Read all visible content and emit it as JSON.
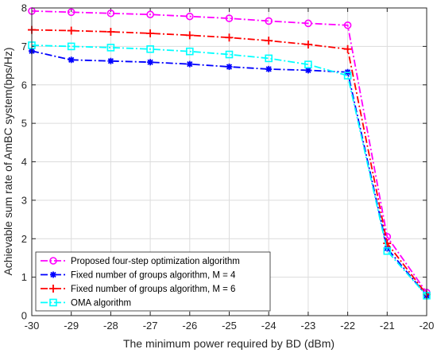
{
  "chart_data": {
    "type": "line",
    "title": "",
    "xlabel": "The minimum power required by BD (dBm)",
    "ylabel": "Achievable sum rate of AmBC system(bps/Hz)",
    "xlim": [
      -30,
      -20
    ],
    "ylim": [
      0,
      8
    ],
    "xticks": [
      -30,
      -29,
      -28,
      -27,
      -26,
      -25,
      -24,
      -23,
      -22,
      -21,
      -20
    ],
    "yticks": [
      0,
      1,
      2,
      3,
      4,
      5,
      6,
      7,
      8
    ],
    "grid": true,
    "legend_position": "bottom-left",
    "x": [
      -30,
      -29,
      -28,
      -27,
      -26,
      -25,
      -24,
      -23,
      -22,
      -21,
      -20
    ],
    "series": [
      {
        "name": "Proposed four-step optimization algorithm",
        "color": "#ff00ff",
        "marker": "circle",
        "values": [
          7.92,
          7.89,
          7.86,
          7.83,
          7.78,
          7.73,
          7.66,
          7.6,
          7.55,
          2.05,
          0.6
        ]
      },
      {
        "name": "Fixed number of groups algorithm, M = 4",
        "color": "#0000ff",
        "marker": "asterisk",
        "values": [
          6.88,
          6.65,
          6.62,
          6.59,
          6.54,
          6.47,
          6.41,
          6.38,
          6.33,
          1.75,
          0.52
        ]
      },
      {
        "name": "Fixed number of groups algorithm, M = 6",
        "color": "#ff0000",
        "marker": "plus",
        "values": [
          7.43,
          7.41,
          7.38,
          7.34,
          7.29,
          7.23,
          7.15,
          7.05,
          6.93,
          1.88,
          0.55
        ]
      },
      {
        "name": "OMA algorithm",
        "color": "#00ffff",
        "marker": "square",
        "values": [
          7.03,
          7.0,
          6.97,
          6.93,
          6.87,
          6.79,
          6.69,
          6.53,
          6.24,
          1.68,
          0.52
        ]
      }
    ]
  }
}
